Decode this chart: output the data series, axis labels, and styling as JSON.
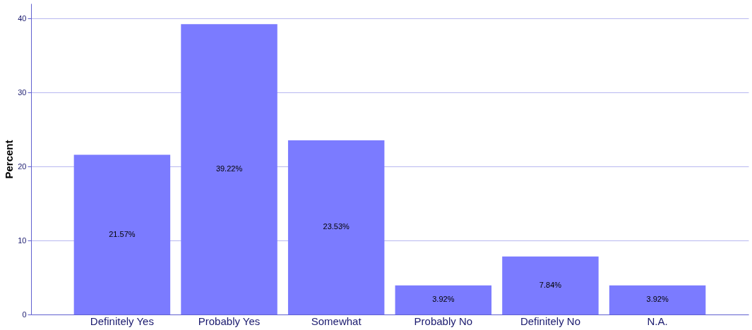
{
  "chart_data": {
    "type": "bar",
    "ylabel": "Percent",
    "categories": [
      "Definitely Yes",
      "Probably Yes",
      "Somewhat",
      "Probably No",
      "Definitely No",
      "N.A."
    ],
    "values": [
      21.57,
      39.22,
      23.53,
      3.92,
      7.84,
      3.92
    ],
    "value_labels": [
      "21.57%",
      "39.22%",
      "23.53%",
      "3.92%",
      "7.84%",
      "3.92%"
    ],
    "color": "#7b7bff",
    "ylim": [
      0,
      42
    ],
    "yticks": [
      0,
      10,
      20,
      30,
      40
    ],
    "grid": "y"
  }
}
